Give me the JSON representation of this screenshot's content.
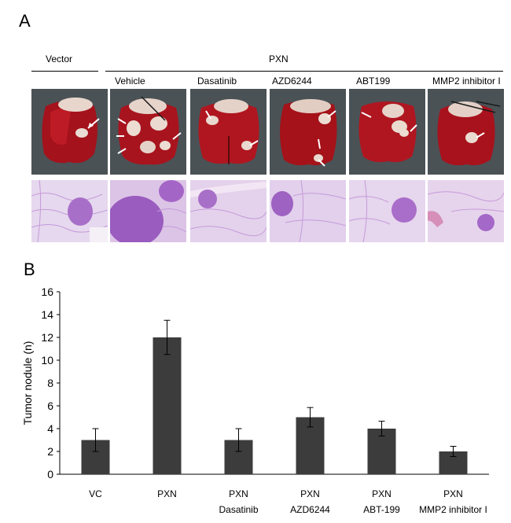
{
  "figure": {
    "panel_a_label": "A",
    "panel_b_label": "B",
    "vector_label": "Vector",
    "pxn_label": "PXN",
    "columns": [
      "Vehicle",
      "Dasatinib",
      "AZD6244",
      "ABT199",
      "MMP2 inhibitor I"
    ]
  },
  "chart_data": {
    "type": "bar",
    "ylabel": "Tumor nodule (n)",
    "xlabel": "",
    "ylim": [
      0,
      16
    ],
    "yticks": [
      0,
      2,
      4,
      6,
      8,
      10,
      12,
      14,
      16
    ],
    "categories": [
      [
        "VC"
      ],
      [
        "PXN"
      ],
      [
        "PXN",
        "Dasatinib"
      ],
      [
        "PXN",
        "AZD6244"
      ],
      [
        "PXN",
        "ABT-199"
      ],
      [
        "PXN",
        "MMP2 inhibitor I"
      ]
    ],
    "values": [
      3,
      12,
      3,
      5,
      4,
      2
    ],
    "errors": [
      1.0,
      1.5,
      1.0,
      0.85,
      0.65,
      0.45
    ],
    "bar_color": "#3c3c3c",
    "grid": false
  }
}
